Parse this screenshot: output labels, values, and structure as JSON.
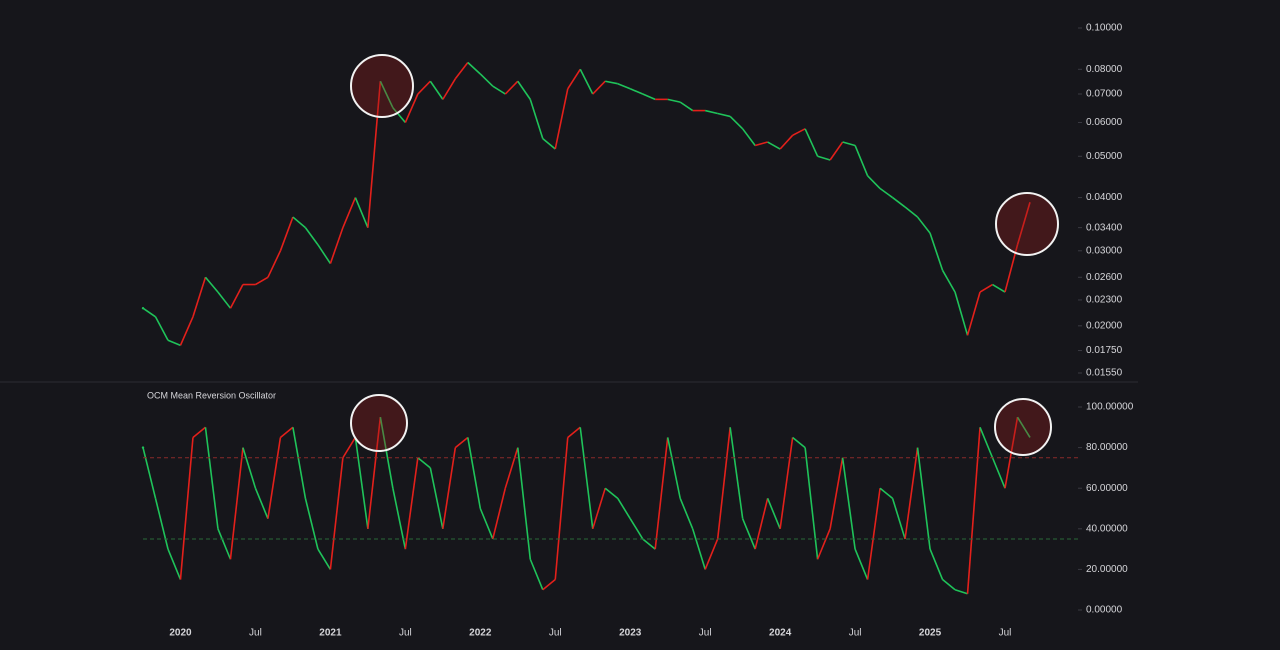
{
  "chart_data": [
    {
      "type": "line",
      "log_scale": true,
      "up_color": "#e3201b",
      "down_color": "#1fc35a",
      "ylim": [
        0.0155,
        0.1
      ],
      "yticks": [
        {
          "value": 0.1,
          "label": "0.10000"
        },
        {
          "value": 0.08,
          "label": "0.08000"
        },
        {
          "value": 0.07,
          "label": "0.07000"
        },
        {
          "value": 0.06,
          "label": "0.06000"
        },
        {
          "value": 0.05,
          "label": "0.05000"
        },
        {
          "value": 0.04,
          "label": "0.04000"
        },
        {
          "value": 0.034,
          "label": "0.03400"
        },
        {
          "value": 0.03,
          "label": "0.03000"
        },
        {
          "value": 0.026,
          "label": "0.02600"
        },
        {
          "value": 0.023,
          "label": "0.02300"
        },
        {
          "value": 0.02,
          "label": "0.02000"
        },
        {
          "value": 0.0175,
          "label": "0.01750"
        },
        {
          "value": 0.0155,
          "label": "0.01550"
        }
      ],
      "values": [
        0.022,
        0.021,
        0.0185,
        0.018,
        0.021,
        0.026,
        0.024,
        0.022,
        0.025,
        0.025,
        0.026,
        0.03,
        0.036,
        0.034,
        0.031,
        0.028,
        0.034,
        0.04,
        0.034,
        0.075,
        0.065,
        0.06,
        0.07,
        0.075,
        0.068,
        0.076,
        0.083,
        0.078,
        0.073,
        0.07,
        0.075,
        0.068,
        0.055,
        0.052,
        0.072,
        0.08,
        0.07,
        0.075,
        0.074,
        0.072,
        0.07,
        0.068,
        0.068,
        0.067,
        0.064,
        0.064,
        0.063,
        0.062,
        0.058,
        0.053,
        0.054,
        0.052,
        0.056,
        0.058,
        0.05,
        0.049,
        0.054,
        0.053,
        0.045,
        0.042,
        0.04,
        0.038,
        0.036,
        0.033,
        0.027,
        0.024,
        0.019,
        0.024,
        0.025,
        0.024,
        0.031,
        0.039
      ]
    },
    {
      "type": "line",
      "title": "OCM Mean Reversion Oscillator",
      "up_color": "#e3201b",
      "down_color": "#1fc35a",
      "ylim": [
        0,
        100
      ],
      "yticks": [
        {
          "value": 100,
          "label": "100.00000"
        },
        {
          "value": 80,
          "label": "80.00000"
        },
        {
          "value": 60,
          "label": "60.00000"
        },
        {
          "value": 40,
          "label": "40.00000"
        },
        {
          "value": 20,
          "label": "20.00000"
        },
        {
          "value": 0,
          "label": "0.00000"
        }
      ],
      "upper_band": 75,
      "lower_band": 35,
      "categories": [
        null,
        null,
        null,
        "2020",
        null,
        null,
        null,
        null,
        null,
        "Jul",
        null,
        null,
        null,
        null,
        null,
        "2021",
        null,
        null,
        null,
        null,
        null,
        "Jul",
        null,
        null,
        null,
        null,
        null,
        "2022",
        null,
        null,
        null,
        null,
        null,
        "Jul",
        null,
        null,
        null,
        null,
        null,
        "2023",
        null,
        null,
        null,
        null,
        null,
        "Jul",
        null,
        null,
        null,
        null,
        null,
        "2024",
        null,
        null,
        null,
        null,
        null,
        "Jul",
        null,
        null,
        null,
        null,
        null,
        "2025",
        null,
        null,
        null,
        null,
        null,
        "Jul",
        null,
        null
      ],
      "values": [
        80,
        55,
        30,
        15,
        85,
        90,
        40,
        25,
        80,
        60,
        45,
        85,
        90,
        55,
        30,
        20,
        75,
        85,
        40,
        95,
        60,
        30,
        75,
        70,
        40,
        80,
        85,
        50,
        35,
        60,
        80,
        25,
        10,
        15,
        85,
        90,
        40,
        60,
        55,
        45,
        35,
        30,
        85,
        55,
        40,
        20,
        35,
        90,
        45,
        30,
        55,
        40,
        85,
        80,
        25,
        40,
        75,
        30,
        15,
        60,
        55,
        35,
        80,
        30,
        15,
        10,
        8,
        90,
        75,
        60,
        95,
        85
      ]
    }
  ]
}
